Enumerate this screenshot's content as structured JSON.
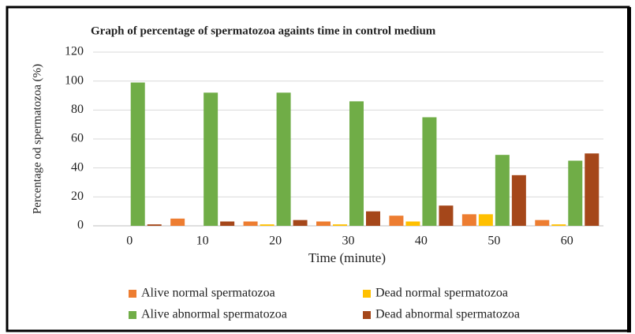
{
  "chart_data": {
    "type": "bar",
    "title": "Graph of percentage of spermatozoa againts time in control medium",
    "xlabel": "Time (minute)",
    "ylabel": "Percentage od spermatozoa (%)",
    "categories": [
      "0",
      "10",
      "20",
      "30",
      "40",
      "50",
      "60"
    ],
    "series": [
      {
        "name": "Alive normal spermatozoa",
        "color": "#ed7d31",
        "values": [
          0,
          5,
          3,
          3,
          7,
          8,
          4
        ]
      },
      {
        "name": "Dead normal spermatozoa",
        "color": "#ffc000",
        "values": [
          0,
          0,
          1,
          1,
          3,
          8,
          1
        ]
      },
      {
        "name": "Alive abnormal spermatozoa",
        "color": "#70ad47",
        "values": [
          99,
          92,
          92,
          86,
          75,
          49,
          45
        ]
      },
      {
        "name": "Dead abnormal spermatozoa",
        "color": "#a5471a",
        "values": [
          1,
          3,
          4,
          10,
          14,
          35,
          50
        ]
      }
    ],
    "ylim": [
      0,
      120
    ],
    "yticks": [
      0,
      20,
      40,
      60,
      80,
      100,
      120
    ],
    "grid": true
  }
}
